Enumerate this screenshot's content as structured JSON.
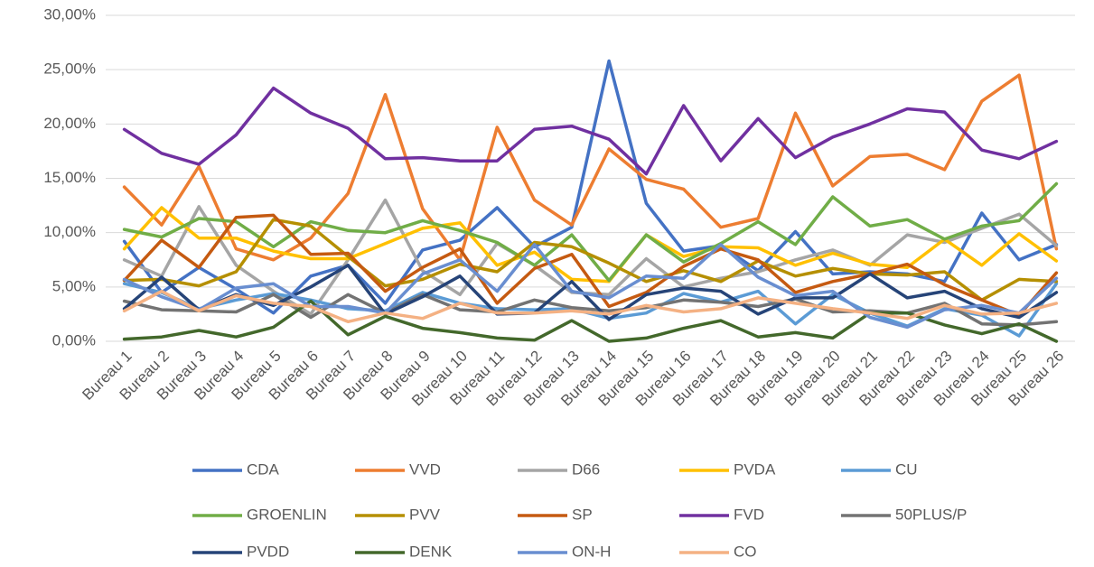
{
  "chart_data": {
    "type": "line",
    "categories": [
      "Bureau 1",
      "Bureau 2",
      "Bureau 3",
      "Bureau 4",
      "Bureau 5",
      "Bureau 6",
      "Bureau 7",
      "Bureau 8",
      "Bureau 9",
      "Bureau 10",
      "Bureau 11",
      "Bureau 12",
      "Bureau 13",
      "Bureau 14",
      "Bureau 15",
      "Bureau 16",
      "Bureau 17",
      "Bureau 18",
      "Bureau 19",
      "Bureau 20",
      "Bureau 21",
      "Bureau 22",
      "Bureau 23",
      "Bureau 24",
      "Bureau 25",
      "Bureau 26"
    ],
    "ylim": [
      0,
      30
    ],
    "yticks": [
      {
        "value": 0,
        "label": "0,00%"
      },
      {
        "value": 5,
        "label": "5,00%"
      },
      {
        "value": 10,
        "label": "10,00%"
      },
      {
        "value": 15,
        "label": "15,00%"
      },
      {
        "value": 20,
        "label": "20,00%"
      },
      {
        "value": 25,
        "label": "25,00%"
      },
      {
        "value": 30,
        "label": "30,00%"
      }
    ],
    "grid": true,
    "legend": "bottom",
    "series": [
      {
        "name": "CDA",
        "color": "#4472c4",
        "values": [
          9.2,
          4.5,
          6.8,
          4.8,
          2.6,
          6,
          7,
          3.5,
          8.4,
          9.3,
          12.3,
          8.7,
          10.5,
          25.8,
          12.7,
          8.3,
          8.8,
          6.5,
          10.1,
          6.2,
          6.4,
          6.2,
          5.5,
          11.8,
          7.5,
          8.9
        ]
      },
      {
        "name": "VVD",
        "color": "#ed7d31",
        "values": [
          14.2,
          10.7,
          16.1,
          8.5,
          7.5,
          9.5,
          13.6,
          22.7,
          12.2,
          7.5,
          19.7,
          13,
          10.7,
          17.7,
          14.9,
          14,
          10.5,
          11.3,
          21,
          14.3,
          17,
          17.2,
          15.8,
          22.1,
          24.5,
          8.5
        ]
      },
      {
        "name": "D66",
        "color": "#a5a5a5",
        "values": [
          7.5,
          6,
          12.4,
          7,
          4.6,
          2.5,
          7.5,
          13,
          6.5,
          4.3,
          9,
          7,
          4.5,
          4.3,
          7.6,
          5,
          5.8,
          6.4,
          7.5,
          8.4,
          7,
          9.8,
          9.1,
          10.4,
          11.7,
          8.8
        ]
      },
      {
        "name": "PVDA",
        "color": "#ffc000",
        "values": [
          8.5,
          12.3,
          9.5,
          9.5,
          8.3,
          7.6,
          7.6,
          9,
          10.4,
          10.9,
          7,
          8.2,
          5.7,
          5.5,
          9.8,
          7.8,
          8.7,
          8.6,
          7,
          8.1,
          7.1,
          6.8,
          9.4,
          7,
          9.9,
          7.4
        ]
      },
      {
        "name": "CU",
        "color": "#5b9bd5",
        "values": [
          5.3,
          4.5,
          3,
          3.8,
          4.4,
          3.8,
          3,
          2.8,
          4.5,
          3.5,
          3,
          2.9,
          3,
          2.1,
          2.6,
          4.4,
          3.6,
          4.6,
          1.6,
          4.3,
          2.6,
          1.4,
          3,
          2.4,
          0.5,
          5.3
        ]
      },
      {
        "name": "GROENLIN",
        "color": "#70ad47",
        "values": [
          10.3,
          9.6,
          11.3,
          11,
          8.7,
          11,
          10.2,
          10,
          11.1,
          10.2,
          9.1,
          7,
          9.8,
          5.6,
          9.8,
          7.3,
          9,
          11,
          8.9,
          13.3,
          10.6,
          11.2,
          9.4,
          10.6,
          11.1,
          14.5
        ]
      },
      {
        "name": "PVV",
        "color": "#b58f00",
        "values": [
          5.6,
          5.7,
          5.1,
          6.4,
          11.2,
          10.6,
          7.8,
          5.1,
          5.7,
          7.1,
          6.4,
          9.1,
          8.7,
          7.2,
          5.5,
          6.5,
          5.5,
          7.4,
          6,
          6.7,
          6.2,
          6.1,
          6.4,
          3.8,
          5.7,
          5.5
        ]
      },
      {
        "name": "SP",
        "color": "#c55a11",
        "values": [
          5.6,
          9.3,
          6.8,
          11.4,
          11.6,
          8,
          8.1,
          4.6,
          6.8,
          8.5,
          3.5,
          6.7,
          8,
          3.2,
          4.5,
          6.9,
          8.5,
          7.5,
          4.5,
          5.5,
          6.2,
          7.1,
          5.2,
          3.8,
          2.4,
          6.3
        ]
      },
      {
        "name": "FVD",
        "color": "#7030a0",
        "values": [
          19.5,
          17.3,
          16.3,
          19,
          23.3,
          21,
          19.6,
          16.8,
          16.9,
          16.6,
          16.6,
          19.5,
          19.8,
          18.6,
          15.4,
          21.7,
          16.6,
          20.5,
          16.9,
          18.8,
          20,
          21.4,
          21.1,
          17.6,
          16.8,
          18.4
        ]
      },
      {
        "name": "50PLUS/P",
        "color": "#737373",
        "values": [
          3.7,
          2.9,
          2.8,
          2.7,
          4.3,
          2.2,
          4.3,
          2.6,
          4.3,
          2.9,
          2.7,
          3.8,
          3.1,
          2.8,
          3.1,
          3.8,
          3.6,
          3.2,
          3.9,
          2.7,
          2.8,
          2.6,
          3.5,
          1.6,
          1.5,
          1.8
        ]
      },
      {
        "name": "PVDD",
        "color": "#264478",
        "values": [
          3,
          5.9,
          2.9,
          4.3,
          3.3,
          5,
          7,
          2.5,
          4.1,
          6,
          2.5,
          2.6,
          5.5,
          2,
          4.3,
          4.9,
          4.6,
          2.5,
          4,
          4,
          6.2,
          4,
          4.6,
          3,
          2.2,
          4.5
        ]
      },
      {
        "name": "DENK",
        "color": "#43682b",
        "values": [
          0.2,
          0.4,
          1,
          0.4,
          1.3,
          3.7,
          0.6,
          2.3,
          1.2,
          0.8,
          0.3,
          0.1,
          1.9,
          0,
          0.3,
          1.2,
          1.9,
          0.4,
          0.8,
          0.3,
          2.6,
          2.6,
          1.5,
          0.7,
          1.6,
          0
        ]
      },
      {
        "name": "ON-H",
        "color": "#698ed0",
        "values": [
          5.7,
          4.1,
          2.9,
          4.9,
          5.3,
          3.2,
          3.2,
          2.6,
          6.2,
          7.5,
          4.6,
          8.9,
          4.6,
          4,
          6,
          5.8,
          8.9,
          5.9,
          4.2,
          4.6,
          2.2,
          1.3,
          2.9,
          3.3,
          2.6,
          5.8
        ]
      },
      {
        "name": "CO",
        "color": "#f4b183",
        "values": [
          2.8,
          4.6,
          2.8,
          4.2,
          3.5,
          3.2,
          1.8,
          2.6,
          2.1,
          3.5,
          2.6,
          2.6,
          2.8,
          2.5,
          3.3,
          2.7,
          3,
          4,
          3.5,
          3,
          2.6,
          2.1,
          3.3,
          2.5,
          2.6,
          3.5
        ]
      }
    ]
  }
}
